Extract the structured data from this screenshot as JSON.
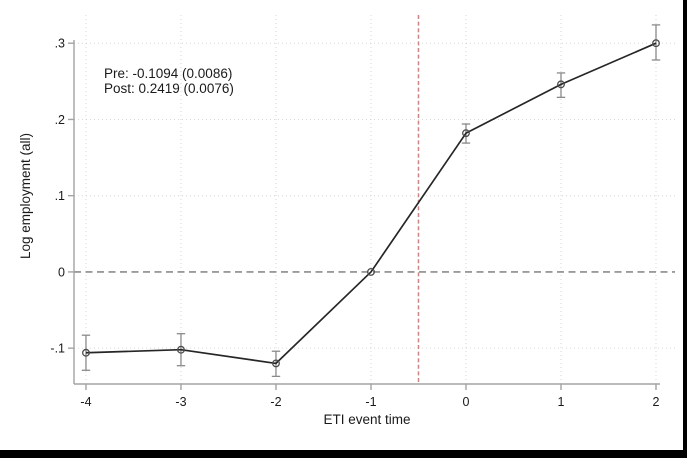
{
  "chart_data": {
    "type": "line",
    "title": "",
    "xlabel": "ETI event time",
    "ylabel": "Log employment (all)",
    "x": [
      -4,
      -3,
      -2,
      -1,
      0,
      1,
      2
    ],
    "series": [
      {
        "name": "Log employment (all)",
        "values": [
          -0.106,
          -0.102,
          -0.12,
          0,
          0.182,
          0.246,
          0.3
        ],
        "ci_low": [
          -0.129,
          -0.123,
          -0.137,
          null,
          0.169,
          0.229,
          0.278
        ],
        "ci_high": [
          -0.083,
          -0.081,
          -0.104,
          null,
          0.194,
          0.261,
          0.324
        ]
      }
    ],
    "x_ticks": [
      {
        "value": -4,
        "label": "-4"
      },
      {
        "value": -3,
        "label": "-3"
      },
      {
        "value": -2,
        "label": "-2"
      },
      {
        "value": -1,
        "label": "-1"
      },
      {
        "value": 0,
        "label": "0"
      },
      {
        "value": 1,
        "label": "1"
      },
      {
        "value": 2,
        "label": "2"
      }
    ],
    "y_ticks": [
      {
        "value": 0.3,
        "label": ".3"
      },
      {
        "value": 0.2,
        "label": ".2"
      },
      {
        "value": 0.1,
        "label": ".1"
      },
      {
        "value": 0,
        "label": "0"
      },
      {
        "value": -0.1,
        "label": "-.1"
      }
    ],
    "xlim": [
      -4.126,
      2.2
    ],
    "ylim": [
      -0.147,
      0.337
    ],
    "reference_lines": {
      "hline_y": 0,
      "vline_x": -0.5
    },
    "grid": true,
    "legend": "none",
    "marker": "open-circle"
  },
  "annotation": {
    "pre": "Pre: -0.1094 (0.0086)",
    "post": "Post: 0.2419 (0.0076)"
  },
  "colors": {
    "background": "#ffffff",
    "axis": "#a3a3a3",
    "grid": "#d6d6d6",
    "zero_line": "#8c8c8c",
    "event_line": "#cc8585",
    "series_line": "#262626",
    "marker": "#4d4d4d",
    "error_bar": "#8a8a8a",
    "text": "#1a1a1a",
    "frame": "#000000"
  }
}
